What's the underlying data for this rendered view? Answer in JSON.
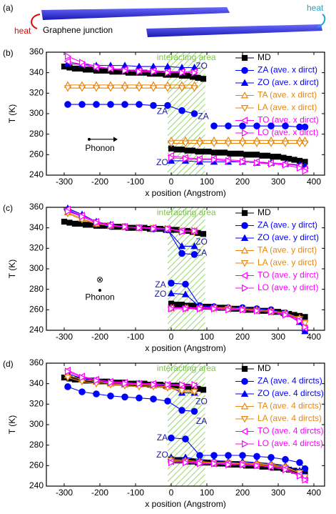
{
  "schematic": {
    "label": "(a)",
    "heat_left": "heat",
    "caption": "Graphene junction",
    "heat_right": "heat"
  },
  "chart_data": [
    {
      "type": "line",
      "panel_label": "(b)",
      "xlabel": "x position (Angstrom)",
      "ylabel": "T (K)",
      "xlim": [
        -350,
        430
      ],
      "xticks": [
        -300,
        -200,
        -100,
        0,
        100,
        200,
        300,
        400
      ],
      "ylim": [
        240,
        360
      ],
      "yticks": [
        240,
        260,
        280,
        300,
        320,
        340,
        360
      ],
      "grid": false,
      "legend": "upper right",
      "highlight": {
        "label": "interacting area",
        "xmin": -10,
        "xmax": 95,
        "color": "#7cc84a"
      },
      "annotations": [
        "ZO",
        "ZA",
        "ZA",
        "ZO"
      ],
      "phonon_label": "Phonon",
      "phonon_symbol": "→",
      "x": [
        -290,
        -250,
        -210,
        -170,
        -130,
        -90,
        -50,
        -10,
        30,
        65,
        null,
        0,
        40,
        80,
        120,
        160,
        200,
        240,
        280,
        320,
        360,
        375
      ],
      "series": [
        {
          "name": "MD",
          "color": "#000000",
          "marker": "square",
          "filled": true,
          "x": [
            -300,
            -285,
            -270,
            -255,
            -240,
            -225,
            -210,
            -195,
            -180,
            -165,
            -150,
            -135,
            -120,
            -105,
            -90,
            -75,
            -60,
            -45,
            -30,
            -15,
            0,
            15,
            30,
            45,
            60,
            75,
            90,
            null,
            0,
            15,
            30,
            45,
            60,
            75,
            90,
            105,
            120,
            135,
            150,
            165,
            180,
            195,
            210,
            225,
            240,
            255,
            270,
            285,
            300,
            315,
            330,
            345,
            360,
            375
          ],
          "values": [
            346,
            345,
            344,
            344,
            343,
            343,
            342,
            342,
            342,
            341,
            341,
            341,
            340,
            340,
            340,
            340,
            339,
            339,
            339,
            338,
            338,
            338,
            337,
            337,
            336,
            335,
            334,
            null,
            266,
            265,
            265,
            264,
            264,
            263,
            263,
            263,
            262,
            262,
            262,
            261,
            261,
            261,
            260,
            260,
            260,
            259,
            259,
            258,
            258,
            257,
            256,
            255,
            254,
            253
          ]
        },
        {
          "name": "ZA (ave. x dirct)",
          "color": "#0000ff",
          "marker": "circle",
          "filled": true,
          "values": [
            309,
            309,
            309,
            309,
            309,
            309,
            308,
            308,
            303,
            300,
            null,
            null,
            null,
            null,
            288,
            288,
            288,
            288,
            288,
            288,
            287,
            287
          ]
        },
        {
          "name": "ZO (ave. x dirct)",
          "color": "#0000ff",
          "marker": "triangle-up",
          "filled": true,
          "values": [
            349,
            348,
            347,
            347,
            347,
            346,
            346,
            346,
            345,
            345,
            null,
            254,
            254,
            253,
            253,
            253,
            253,
            252,
            252,
            251,
            250,
            249
          ]
        },
        {
          "name": "TA (ave. x dirct)",
          "color": "#e8870e",
          "marker": "triangle-up",
          "filled": false,
          "values": [
            328,
            328,
            328,
            328,
            328,
            328,
            328,
            328,
            328,
            328,
            null,
            274,
            274,
            274,
            274,
            274,
            274,
            274,
            274,
            274,
            274,
            274
          ]
        },
        {
          "name": "LA (ave. x dirct)",
          "color": "#e8870e",
          "marker": "triangle-down",
          "filled": false,
          "values": [
            325,
            325,
            325,
            325,
            325,
            325,
            325,
            325,
            325,
            325,
            null,
            271,
            271,
            271,
            271,
            271,
            271,
            271,
            271,
            271,
            271,
            271
          ]
        },
        {
          "name": "TO (ave. x dirct)",
          "color": "#ff00ff",
          "marker": "triangle-left",
          "filled": false,
          "values": [
            351,
            348,
            345,
            344,
            343,
            342,
            342,
            341,
            341,
            341,
            null,
            259,
            257,
            256,
            256,
            255,
            254,
            253,
            252,
            251,
            249,
            246
          ]
        },
        {
          "name": "LO (ave. x dirct)",
          "color": "#ff00ff",
          "marker": "triangle-right",
          "filled": false,
          "values": [
            356,
            350,
            346,
            344,
            342,
            341,
            341,
            340,
            340,
            340,
            null,
            257,
            256,
            255,
            255,
            254,
            253,
            252,
            251,
            250,
            247,
            244
          ]
        }
      ]
    },
    {
      "type": "line",
      "panel_label": "(c)",
      "xlabel": "x position (Angstrom)",
      "ylabel": "T (K)",
      "xlim": [
        -350,
        430
      ],
      "xticks": [
        -300,
        -200,
        -100,
        0,
        100,
        200,
        300,
        400
      ],
      "ylim": [
        240,
        360
      ],
      "yticks": [
        240,
        260,
        280,
        300,
        320,
        340,
        360
      ],
      "grid": false,
      "legend": "upper right",
      "highlight": {
        "label": "interacting area",
        "xmin": -10,
        "xmax": 95,
        "color": "#7cc84a"
      },
      "annotations": [
        "ZO",
        "ZA",
        "ZA",
        "ZO"
      ],
      "phonon_label": "Phonon",
      "phonon_symbol": "⊗",
      "x": [
        -290,
        -250,
        -210,
        -170,
        -130,
        -90,
        -50,
        -10,
        30,
        65,
        null,
        0,
        40,
        80,
        120,
        160,
        200,
        240,
        280,
        320,
        360,
        375
      ],
      "series": [
        {
          "name": "MD",
          "color": "#000000",
          "marker": "square",
          "filled": true,
          "x": [
            -300,
            -285,
            -270,
            -255,
            -240,
            -225,
            -210,
            -195,
            -180,
            -165,
            -150,
            -135,
            -120,
            -105,
            -90,
            -75,
            -60,
            -45,
            -30,
            -15,
            0,
            15,
            30,
            45,
            60,
            75,
            90,
            null,
            0,
            15,
            30,
            45,
            60,
            75,
            90,
            105,
            120,
            135,
            150,
            165,
            180,
            195,
            210,
            225,
            240,
            255,
            270,
            285,
            300,
            315,
            330,
            345,
            360,
            375
          ],
          "values": [
            346,
            345,
            344,
            344,
            343,
            343,
            342,
            342,
            342,
            341,
            341,
            341,
            340,
            340,
            340,
            340,
            339,
            339,
            339,
            338,
            338,
            338,
            337,
            337,
            336,
            335,
            334,
            null,
            266,
            265,
            265,
            264,
            264,
            263,
            263,
            263,
            262,
            262,
            262,
            261,
            261,
            261,
            260,
            260,
            260,
            259,
            259,
            258,
            258,
            257,
            256,
            255,
            254,
            253
          ]
        },
        {
          "name": "ZA (ave. y dirct)",
          "color": "#0000ff",
          "marker": "circle",
          "filled": true,
          "values": [
            357,
            351,
            345,
            342,
            341,
            340,
            339,
            338,
            315,
            314,
            null,
            286,
            285,
            264,
            263,
            262,
            262,
            261,
            260,
            257,
            250,
            240
          ]
        },
        {
          "name": "ZO (ave. y dirct)",
          "color": "#0000ff",
          "marker": "triangle-up",
          "filled": true,
          "values": [
            359,
            353,
            346,
            343,
            341,
            340,
            339,
            338,
            322,
            322,
            null,
            276,
            275,
            263,
            262,
            262,
            261,
            260,
            259,
            256,
            248,
            239
          ]
        },
        {
          "name": "TA (ave. y dirct)",
          "color": "#e8870e",
          "marker": "triangle-up",
          "filled": false,
          "values": [
            355,
            349,
            344,
            342,
            341,
            340,
            340,
            339,
            337,
            337,
            null,
            262,
            262,
            262,
            262,
            262,
            261,
            260,
            259,
            257,
            252,
            245
          ]
        },
        {
          "name": "LA (ave. y dirct)",
          "color": "#e8870e",
          "marker": "triangle-down",
          "filled": false,
          "values": [
            354,
            348,
            344,
            342,
            341,
            340,
            340,
            339,
            337,
            336,
            null,
            261,
            261,
            261,
            261,
            261,
            260,
            259,
            258,
            256,
            251,
            247
          ]
        },
        {
          "name": "TO (ave. y dirct)",
          "color": "#ff00ff",
          "marker": "triangle-left",
          "filled": false,
          "values": [
            358,
            352,
            346,
            343,
            341,
            340,
            340,
            339,
            337,
            337,
            null,
            262,
            262,
            262,
            262,
            261,
            260,
            259,
            258,
            256,
            250,
            242
          ]
        },
        {
          "name": "LO (ave. y dirct)",
          "color": "#ff00ff",
          "marker": "triangle-right",
          "filled": false,
          "values": [
            356,
            351,
            345,
            342,
            341,
            340,
            339,
            339,
            336,
            337,
            null,
            261,
            261,
            261,
            261,
            260,
            260,
            259,
            258,
            255,
            249,
            243
          ]
        }
      ]
    },
    {
      "type": "line",
      "panel_label": "(d)",
      "xlabel": "x position (Angstrom)",
      "ylabel": "T (K)",
      "xlim": [
        -350,
        430
      ],
      "xticks": [
        -300,
        -200,
        -100,
        0,
        100,
        200,
        300,
        400
      ],
      "ylim": [
        240,
        360
      ],
      "yticks": [
        240,
        260,
        280,
        300,
        320,
        340,
        360
      ],
      "grid": false,
      "legend": "upper right",
      "highlight": {
        "label": "interacting area",
        "xmin": -10,
        "xmax": 95,
        "color": "#7cc84a"
      },
      "annotations": [
        "ZO",
        "ZA",
        "ZA",
        "ZO"
      ],
      "x": [
        -290,
        -250,
        -210,
        -170,
        -130,
        -90,
        -50,
        -10,
        30,
        65,
        null,
        0,
        40,
        80,
        120,
        160,
        200,
        240,
        280,
        320,
        360,
        375
      ],
      "series": [
        {
          "name": "MD",
          "color": "#000000",
          "marker": "square",
          "filled": true,
          "x": [
            -300,
            -285,
            -270,
            -255,
            -240,
            -225,
            -210,
            -195,
            -180,
            -165,
            -150,
            -135,
            -120,
            -105,
            -90,
            -75,
            -60,
            -45,
            -30,
            -15,
            0,
            15,
            30,
            45,
            60,
            75,
            90,
            null,
            0,
            15,
            30,
            45,
            60,
            75,
            90,
            105,
            120,
            135,
            150,
            165,
            180,
            195,
            210,
            225,
            240,
            255,
            270,
            285,
            300,
            315,
            330,
            345,
            360,
            375
          ],
          "values": [
            346,
            345,
            344,
            344,
            343,
            343,
            342,
            342,
            342,
            341,
            341,
            341,
            340,
            340,
            340,
            340,
            339,
            339,
            339,
            338,
            338,
            338,
            337,
            337,
            336,
            335,
            334,
            null,
            266,
            265,
            265,
            264,
            264,
            263,
            263,
            263,
            262,
            262,
            262,
            261,
            261,
            261,
            260,
            260,
            260,
            259,
            259,
            258,
            258,
            257,
            256,
            255,
            254,
            253
          ]
        },
        {
          "name": "ZA (ave. 4 dircts)",
          "color": "#0000ff",
          "marker": "circle",
          "filled": true,
          "values": [
            337,
            332,
            330,
            328,
            327,
            326,
            325,
            323,
            314,
            313,
            null,
            287,
            286,
            270,
            270,
            270,
            270,
            269,
            268,
            266,
            263,
            257
          ]
        },
        {
          "name": "ZO (ave. 4 dircts)",
          "color": "#0000ff",
          "marker": "triangle-up",
          "filled": true,
          "values": [
            350,
            345,
            343,
            341,
            340,
            340,
            339,
            338,
            331,
            331,
            null,
            268,
            268,
            266,
            265,
            264,
            264,
            263,
            262,
            260,
            255,
            250
          ]
        },
        {
          "name": "TA (ave. 4 dircts)",
          "color": "#e8870e",
          "marker": "triangle-up",
          "filled": false,
          "values": [
            348,
            344,
            342,
            340,
            339,
            339,
            338,
            337,
            334,
            333,
            null,
            266,
            265,
            264,
            263,
            263,
            262,
            262,
            261,
            259,
            253,
            248
          ]
        },
        {
          "name": "LA (ave. 4 dircts)",
          "color": "#e8870e",
          "marker": "triangle-down",
          "filled": false,
          "values": [
            346,
            342,
            340,
            339,
            338,
            337,
            337,
            336,
            333,
            332,
            null,
            265,
            264,
            263,
            263,
            262,
            262,
            261,
            260,
            258,
            253,
            249
          ]
        },
        {
          "name": "TO (ave. 4 dircts)",
          "color": "#ff00ff",
          "marker": "triangle-left",
          "filled": false,
          "values": [
            353,
            347,
            344,
            342,
            341,
            340,
            340,
            339,
            338,
            338,
            null,
            264,
            264,
            263,
            262,
            262,
            261,
            260,
            259,
            257,
            251,
            246
          ]
        },
        {
          "name": "LO (ave. 4 dircts)",
          "color": "#ff00ff",
          "marker": "triangle-right",
          "filled": false,
          "values": [
            352,
            346,
            343,
            341,
            340,
            340,
            339,
            339,
            339,
            339,
            null,
            263,
            263,
            262,
            262,
            261,
            261,
            260,
            259,
            256,
            250,
            246
          ]
        }
      ]
    }
  ]
}
